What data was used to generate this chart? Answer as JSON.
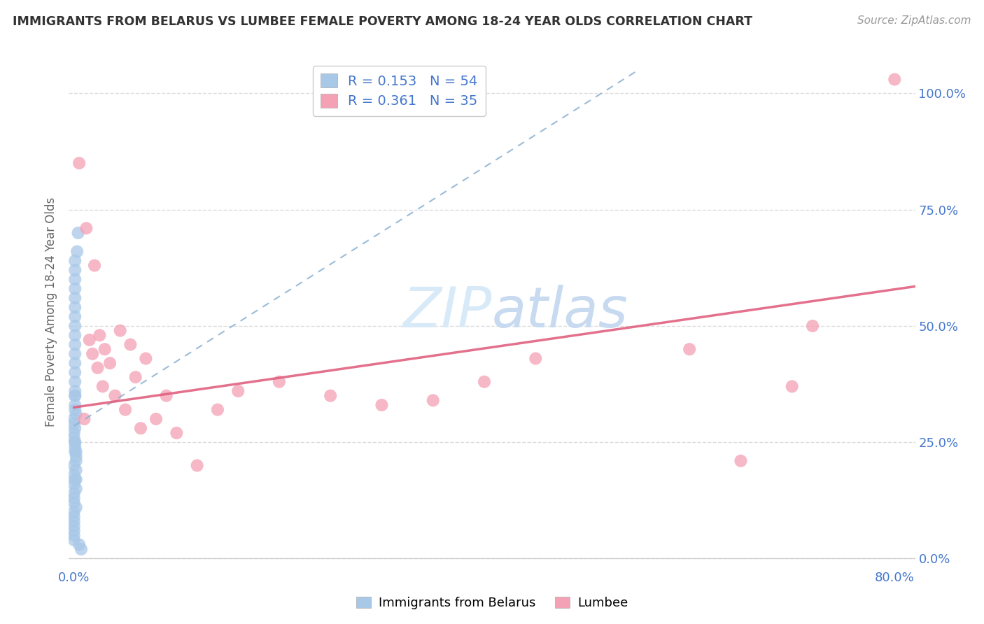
{
  "title": "IMMIGRANTS FROM BELARUS VS LUMBEE FEMALE POVERTY AMONG 18-24 YEAR OLDS CORRELATION CHART",
  "source": "Source: ZipAtlas.com",
  "ylabel": "Female Poverty Among 18-24 Year Olds",
  "xlim": [
    -0.005,
    0.82
  ],
  "ylim": [
    -0.02,
    1.08
  ],
  "yticks": [
    0.0,
    0.25,
    0.5,
    0.75,
    1.0
  ],
  "xticks": [
    0.0,
    0.1,
    0.2,
    0.3,
    0.4,
    0.5,
    0.6,
    0.7,
    0.8
  ],
  "blue_R": 0.153,
  "blue_N": 54,
  "pink_R": 0.361,
  "pink_N": 35,
  "blue_color": "#a8c8e8",
  "pink_color": "#f4a0b5",
  "blue_line_color": "#8ab0d0",
  "pink_line_color": "#e06080",
  "legend_text_color": "#4477cc",
  "watermark_color": "#d8eaf8",
  "grid_color": "#d8d8d8",
  "title_color": "#333333",
  "source_color": "#999999",
  "axis_label_color": "#666666",
  "tick_color": "#4477cc",
  "blue_x": [
    0.0,
    0.001,
    0.0,
    0.001,
    0.002,
    0.001,
    0.0,
    0.001,
    0.0,
    0.001,
    0.002,
    0.001,
    0.0,
    0.001,
    0.0,
    0.001,
    0.002,
    0.001,
    0.0,
    0.001,
    0.0,
    0.001,
    0.002,
    0.001,
    0.0,
    0.001,
    0.0,
    0.001,
    0.002,
    0.001,
    0.0,
    0.001,
    0.0,
    0.001,
    0.002,
    0.001,
    0.0,
    0.001,
    0.0,
    0.001,
    0.002,
    0.001,
    0.0,
    0.001,
    0.0,
    0.001,
    0.002,
    0.001,
    0.0,
    0.001,
    0.003,
    0.004,
    0.005,
    0.007
  ],
  "blue_y": [
    0.3,
    0.28,
    0.26,
    0.32,
    0.31,
    0.33,
    0.27,
    0.25,
    0.29,
    0.35,
    0.22,
    0.24,
    0.2,
    0.36,
    0.18,
    0.38,
    0.21,
    0.23,
    0.16,
    0.4,
    0.14,
    0.42,
    0.19,
    0.17,
    0.12,
    0.44,
    0.1,
    0.46,
    0.15,
    0.48,
    0.08,
    0.5,
    0.13,
    0.35,
    0.23,
    0.25,
    0.07,
    0.52,
    0.06,
    0.54,
    0.11,
    0.56,
    0.05,
    0.58,
    0.09,
    0.6,
    0.17,
    0.62,
    0.04,
    0.64,
    0.66,
    0.7,
    0.03,
    0.02
  ],
  "pink_x": [
    0.005,
    0.01,
    0.012,
    0.015,
    0.018,
    0.02,
    0.023,
    0.025,
    0.028,
    0.03,
    0.035,
    0.04,
    0.045,
    0.05,
    0.055,
    0.06,
    0.065,
    0.07,
    0.08,
    0.09,
    0.1,
    0.12,
    0.14,
    0.16,
    0.2,
    0.25,
    0.3,
    0.35,
    0.4,
    0.45,
    0.6,
    0.65,
    0.7,
    0.72,
    0.8
  ],
  "pink_y": [
    0.85,
    0.3,
    0.71,
    0.47,
    0.44,
    0.63,
    0.41,
    0.48,
    0.37,
    0.45,
    0.42,
    0.35,
    0.49,
    0.32,
    0.46,
    0.39,
    0.28,
    0.43,
    0.3,
    0.35,
    0.27,
    0.2,
    0.32,
    0.36,
    0.38,
    0.35,
    0.33,
    0.34,
    0.38,
    0.43,
    0.45,
    0.21,
    0.37,
    0.5,
    1.03
  ],
  "blue_trendline_x0": 0.0,
  "blue_trendline_x1": 0.55,
  "blue_trendline_y0": 0.285,
  "blue_trendline_y1": 1.05,
  "pink_trendline_x0": 0.0,
  "pink_trendline_x1": 0.82,
  "pink_trendline_y0": 0.325,
  "pink_trendline_y1": 0.585
}
